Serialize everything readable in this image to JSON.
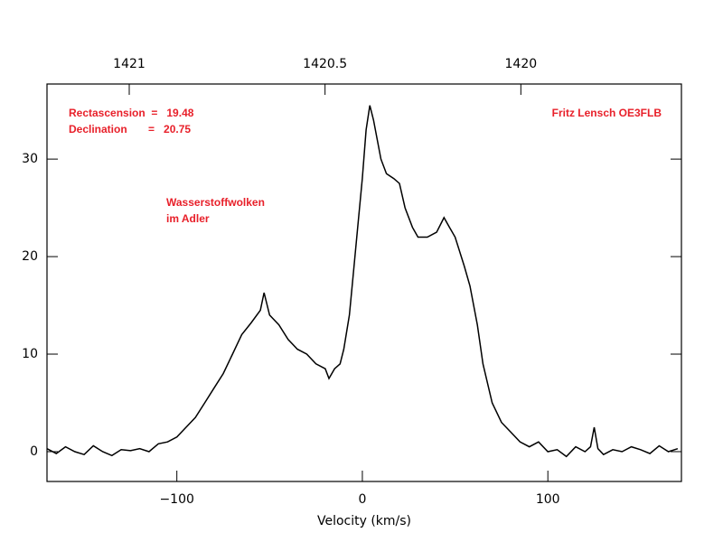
{
  "chart_data": {
    "type": "line",
    "x_label": "Velocity (km/s)",
    "x": [
      -170,
      -165,
      -160,
      -155,
      -150,
      -145,
      -140,
      -135,
      -130,
      -125,
      -120,
      -115,
      -110,
      -105,
      -100,
      -95,
      -90,
      -85,
      -80,
      -75,
      -70,
      -65,
      -60,
      -55,
      -53,
      -50,
      -45,
      -40,
      -35,
      -30,
      -25,
      -20,
      -18,
      -15,
      -12,
      -10,
      -7,
      -5,
      -2,
      0,
      2,
      4,
      6,
      8,
      10,
      13,
      17,
      20,
      23,
      27,
      30,
      35,
      40,
      44,
      47,
      50,
      55,
      58,
      62,
      65,
      70,
      75,
      80,
      85,
      90,
      95,
      100,
      105,
      110,
      115,
      120,
      123,
      125,
      127,
      130,
      135,
      140,
      145,
      150,
      155,
      160,
      165,
      170
    ],
    "series": [
      {
        "color": "#000000",
        "values": [
          0.3,
          -0.2,
          0.5,
          0,
          -0.3,
          0.6,
          0,
          -0.4,
          0.2,
          0.1,
          0.3,
          0,
          0.8,
          1,
          1.5,
          2.5,
          3.5,
          5,
          6.5,
          8,
          10,
          12,
          13.2,
          14.5,
          16.3,
          14,
          13,
          11.5,
          10.5,
          10,
          9,
          8.5,
          7.5,
          8.5,
          9,
          10.5,
          14,
          18,
          24,
          28,
          33,
          35.5,
          34,
          32,
          30,
          28.5,
          28,
          27.5,
          25,
          23,
          22,
          22,
          22.5,
          24,
          23,
          22,
          19,
          17,
          13,
          9,
          5,
          3,
          2,
          1,
          0.5,
          1,
          0,
          0.2,
          -0.5,
          0.5,
          0,
          0.5,
          2.5,
          0.3,
          -0.3,
          0.2,
          0,
          0.5,
          0.2,
          -0.2,
          0.6,
          0,
          0.3
        ]
      }
    ],
    "xlim": [
      -170,
      172
    ],
    "ylim": [
      -3.06,
      37.7
    ],
    "xticks": [
      {
        "value": -100,
        "label": "−100"
      },
      0,
      100
    ],
    "yticks": [
      0,
      10,
      20,
      30
    ],
    "x2lim": [
      1421.21,
      1419.59
    ],
    "x2ticks": [
      1421,
      1420.5,
      1420
    ],
    "annotations": [
      {
        "text": "Rectascension  =   19.48",
        "color": "#e8202a"
      },
      {
        "text": "Declination       =   20.75",
        "color": "#e8202a"
      },
      {
        "text": "Fritz Lensch OE3FLB",
        "color": "#e8202a"
      },
      {
        "text": "Wasserstoffwolken",
        "color": "#e8202a"
      },
      {
        "text": "im Adler",
        "color": "#e8202a"
      }
    ]
  }
}
